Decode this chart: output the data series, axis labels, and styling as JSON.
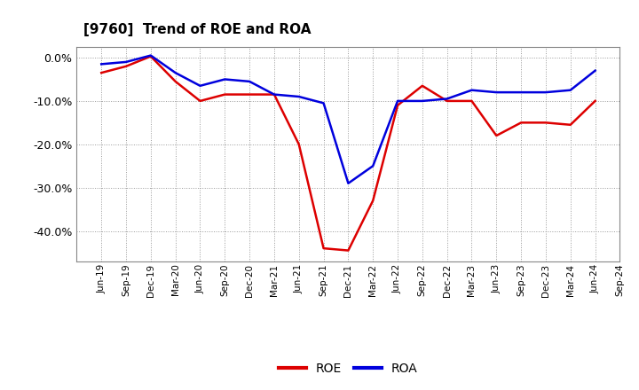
{
  "title": "[9760]  Trend of ROE and ROA",
  "x_labels": [
    "Jun-19",
    "Sep-19",
    "Dec-19",
    "Mar-20",
    "Jun-20",
    "Sep-20",
    "Dec-20",
    "Mar-21",
    "Jun-21",
    "Sep-21",
    "Dec-21",
    "Mar-22",
    "Jun-22",
    "Sep-22",
    "Dec-22",
    "Mar-23",
    "Jun-23",
    "Sep-23",
    "Dec-23",
    "Mar-24",
    "Jun-24",
    "Sep-24"
  ],
  "roe": [
    -3.5,
    -2.0,
    0.3,
    -5.5,
    -10.0,
    -8.5,
    -8.5,
    -8.5,
    -20.0,
    -44.0,
    -44.5,
    -33.0,
    -11.0,
    -6.5,
    -10.0,
    -10.0,
    -18.0,
    -15.0,
    -15.0,
    -15.5,
    -10.0,
    null
  ],
  "roa": [
    -1.5,
    -1.0,
    0.5,
    -3.5,
    -6.5,
    -5.0,
    -5.5,
    -8.5,
    -9.0,
    -10.5,
    -29.0,
    -25.0,
    -10.0,
    -10.0,
    -9.5,
    -7.5,
    -8.0,
    -8.0,
    -8.0,
    -7.5,
    -3.0,
    null
  ],
  "roe_color": "#dd0000",
  "roa_color": "#0000dd",
  "bg_color": "#ffffff",
  "plot_bg_color": "#ffffff",
  "grid_color": "#999999",
  "ylim_min": -47,
  "ylim_max": 2.5,
  "yticks": [
    0.0,
    -10.0,
    -20.0,
    -30.0,
    -40.0
  ],
  "legend_labels": [
    "ROE",
    "ROA"
  ]
}
